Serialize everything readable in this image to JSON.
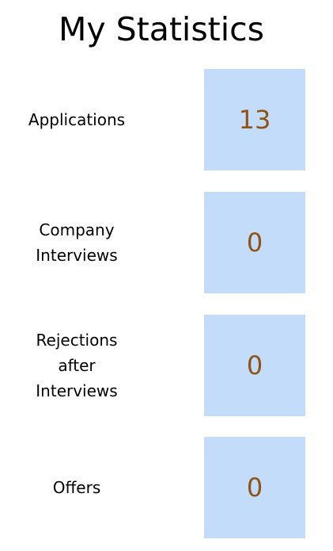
{
  "header": {
    "title": "My Statistics"
  },
  "stats": [
    {
      "label": "Applications",
      "value": "13"
    },
    {
      "label": "Company\nInterviews",
      "value": "0"
    },
    {
      "label": "Rejections\nafter\nInterviews",
      "value": "0"
    },
    {
      "label": "Offers",
      "value": "0"
    }
  ],
  "colors": {
    "box_background": "#c2dcf9",
    "value_text": "#8f5316",
    "label_text": "#000000",
    "page_background": "#ffffff"
  }
}
